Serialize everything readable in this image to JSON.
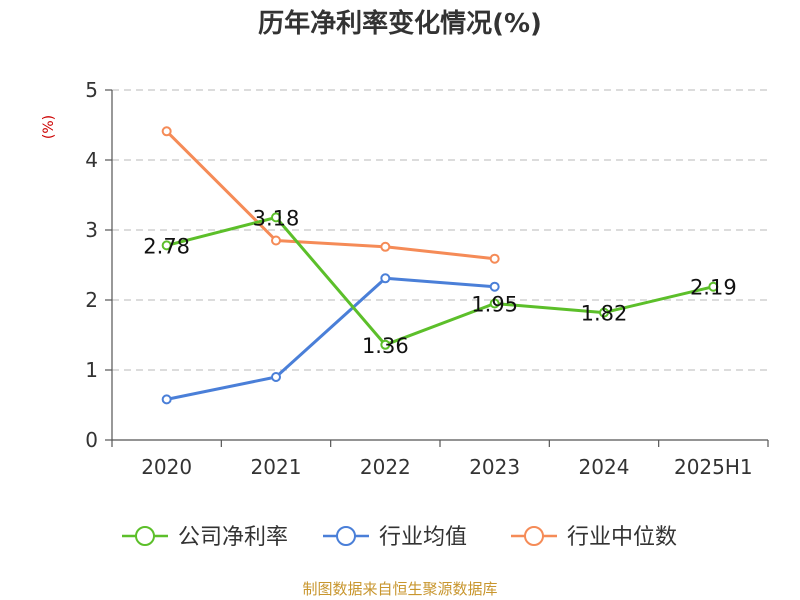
{
  "chart_data": {
    "type": "line",
    "title": "历年净利率变化情况(%)",
    "ylabel": "(%)",
    "categories": [
      "2020",
      "2021",
      "2022",
      "2023",
      "2024",
      "2025H1"
    ],
    "ylim": [
      0,
      5
    ],
    "yticks": [
      "0",
      "1",
      "2",
      "3",
      "4",
      "5"
    ],
    "grid": true,
    "legend_position": "bottom",
    "series": [
      {
        "name": "公司净利率",
        "color": "#5cbf2a",
        "values": [
          2.78,
          3.18,
          1.36,
          1.95,
          1.82,
          2.19
        ],
        "labels": [
          "2.78",
          "3.18",
          "1.36",
          "1.95",
          "1.82",
          "2.19"
        ]
      },
      {
        "name": "行业均值",
        "color": "#4a7fd8",
        "values": [
          0.58,
          0.9,
          2.31,
          2.19,
          null,
          null
        ]
      },
      {
        "name": "行业中位数",
        "color": "#f58b57",
        "values": [
          4.41,
          2.85,
          2.76,
          2.59,
          null,
          null
        ]
      }
    ]
  },
  "source": "制图数据来自恒生聚源数据库"
}
